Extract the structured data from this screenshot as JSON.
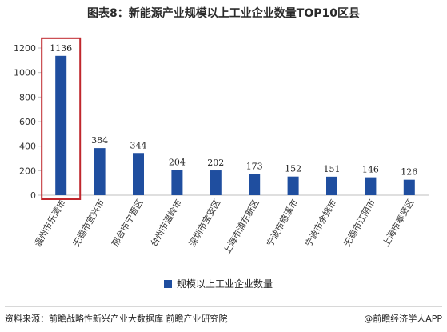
{
  "page": {
    "title": "图表8：新能源产业规模以上工业企业数量TOP10区县",
    "source": "资料来源：前瞻战略性新兴产业大数据库 前瞻产业研究院",
    "brand": "@前瞻经济学人APP"
  },
  "colors": {
    "bar": "#1f4e9f",
    "highlight_box": "#c0272d",
    "axis": "#bfbfbf",
    "text": "#333333"
  },
  "chart_data": {
    "type": "bar",
    "categories": [
      "温州市乐清市",
      "无锡市宜兴市",
      "邢台市宁晋区",
      "台州市温岭市",
      "深圳市宝安区",
      "上海市浦东新区",
      "宁波市慈溪市",
      "宁波市余姚市",
      "无锡市江阴市",
      "上海市奉贤区"
    ],
    "series": [
      {
        "name": "规模以上工业企业数量",
        "values": [
          1136,
          384,
          344,
          204,
          202,
          173,
          152,
          151,
          146,
          126
        ]
      }
    ],
    "ylim": [
      0,
      1200
    ],
    "yticks": [
      0,
      200,
      400,
      600,
      800,
      1000,
      1200
    ],
    "legend_position": "bottom",
    "highlight_index": 0,
    "grid": false
  }
}
